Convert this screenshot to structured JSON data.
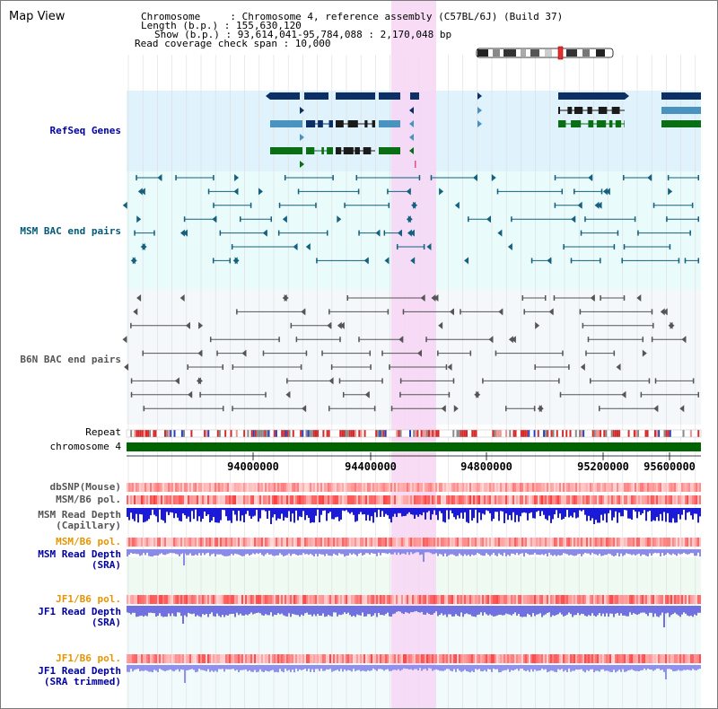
{
  "title": "Map View",
  "info": {
    "line1": "Chromosome     : Chromosome 4, reference assembly (C57BL/6J) (Build 37)",
    "line2": "Length (b.p.) : 155,630,120",
    "line3": "Show (b.p.) : 93,614,041-95,784,088 : 2,170,048 bp",
    "line4": "Read coverage check span : 10,000"
  },
  "tracks": {
    "refseq": "RefSeq Genes",
    "msm_bac": "MSM BAC end pairs",
    "b6n_bac": "B6N BAC end pairs",
    "repeat": "Repeat",
    "chromosome": "chromosome 4",
    "dbsnp": "dbSNP(Mouse)",
    "msm_b6_pol_1": "MSM/B6 pol.",
    "msm_depth_cap": "MSM Read Depth\n(Capillary)",
    "msm_b6_pol_2": "MSM/B6 pol.",
    "msm_depth_sra": "MSM Read Depth\n(SRA)",
    "jf1_b6_pol_1": "JF1/B6 pol.",
    "jf1_depth_sra": "JF1 Read Depth\n(SRA)",
    "jf1_b6_pol_2": "JF1/B6 pol.",
    "jf1_depth_trim": "JF1 Read Depth\n(SRA trimmed)"
  },
  "axis": {
    "ticks": [
      "94000000",
      "94400000",
      "94800000",
      "95200000",
      "95600000"
    ]
  },
  "colors": {
    "refseq_bg": "#e0f2fb",
    "msm_bac_bg": "#e9fbfb",
    "b6n_bac_bg": "#f4f8fb",
    "highlight": "#f7d6f4",
    "gene_navy": "#0c2f66",
    "gene_blue": "#4a93c0",
    "gene_green": "#0a6e14",
    "msm_pair": "#14607e",
    "b6n_pair": "#555555",
    "label_blue": "#0000a8",
    "label_teal": "#005a7a",
    "label_gray": "#555555",
    "label_orange": "#e69500"
  }
}
